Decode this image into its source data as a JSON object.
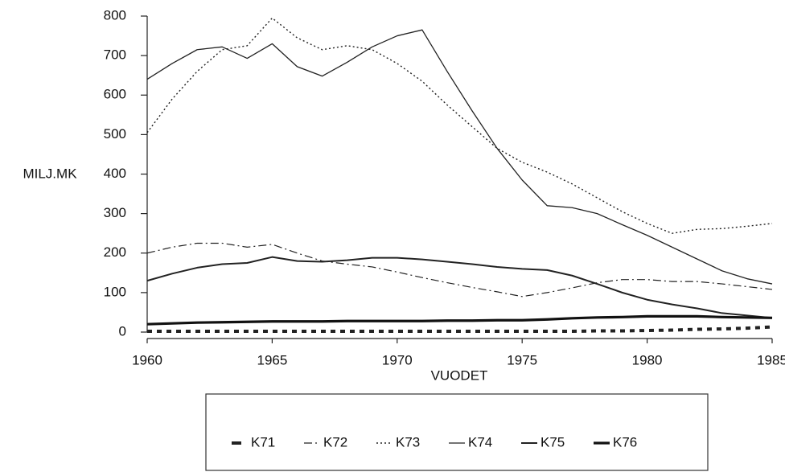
{
  "chart_data": {
    "type": "line",
    "y_label": "MILJ.MK",
    "x_label": "VUODET",
    "x": [
      1960,
      1961,
      1962,
      1963,
      1964,
      1965,
      1966,
      1967,
      1968,
      1969,
      1970,
      1971,
      1972,
      1973,
      1974,
      1975,
      1976,
      1977,
      1978,
      1979,
      1980,
      1981,
      1982,
      1983,
      1984,
      1985
    ],
    "series": [
      {
        "name": "K71",
        "color": "#222",
        "values": [
          2,
          2,
          2,
          2,
          2,
          2,
          2,
          2,
          2,
          2,
          2,
          2,
          2,
          2,
          2,
          2,
          2,
          2,
          3,
          3,
          4,
          5,
          7,
          8,
          10,
          13
        ]
      },
      {
        "name": "K72",
        "color": "#222",
        "values": [
          200,
          215,
          225,
          225,
          215,
          222,
          200,
          180,
          172,
          165,
          152,
          138,
          125,
          113,
          102,
          90,
          100,
          112,
          125,
          133,
          133,
          128,
          128,
          122,
          115,
          108
        ]
      },
      {
        "name": "K73",
        "color": "#222",
        "values": [
          505,
          590,
          660,
          715,
          725,
          795,
          745,
          715,
          725,
          715,
          680,
          635,
          575,
          520,
          465,
          430,
          405,
          375,
          340,
          305,
          275,
          250,
          260,
          262,
          268,
          275
        ]
      },
      {
        "name": "K74",
        "color": "#222",
        "values": [
          640,
          680,
          715,
          722,
          693,
          730,
          672,
          648,
          683,
          722,
          750,
          765,
          660,
          560,
          465,
          385,
          320,
          315,
          300,
          272,
          245,
          215,
          185,
          155,
          135,
          122
        ]
      },
      {
        "name": "K75",
        "color": "#222",
        "values": [
          130,
          148,
          163,
          172,
          175,
          190,
          180,
          178,
          182,
          188,
          188,
          184,
          178,
          172,
          165,
          160,
          157,
          143,
          122,
          100,
          82,
          70,
          60,
          48,
          42,
          36
        ]
      },
      {
        "name": "K76",
        "color": "#111",
        "values": [
          20,
          22,
          24,
          25,
          26,
          27,
          27,
          27,
          28,
          28,
          28,
          28,
          29,
          29,
          30,
          30,
          32,
          35,
          37,
          38,
          40,
          40,
          40,
          38,
          37,
          36
        ]
      }
    ],
    "xlim": [
      1960,
      1985
    ],
    "xticks": [
      1960,
      1965,
      1970,
      1975,
      1980,
      1985
    ],
    "ylim": [
      0,
      800
    ],
    "yticks": [
      0,
      100,
      200,
      300,
      400,
      500,
      600,
      700,
      800
    ]
  }
}
